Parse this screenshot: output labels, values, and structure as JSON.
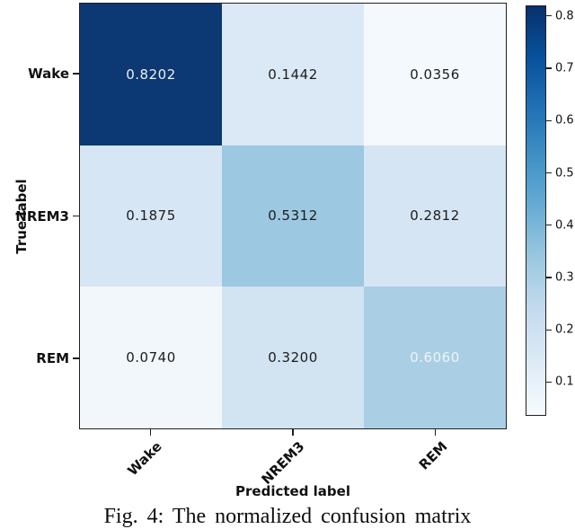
{
  "figure": {
    "caption": "Fig. 4: The normalized confusion matrix"
  },
  "chart_data": {
    "type": "heatmap",
    "title": "",
    "xlabel": "Predicted label",
    "ylabel": "True label",
    "x_categories": [
      "Wake",
      "NREM3",
      "REM"
    ],
    "y_categories": [
      "Wake",
      "NREM3",
      "REM"
    ],
    "values": [
      [
        0.8202,
        0.1442,
        0.0356
      ],
      [
        0.1875,
        0.5312,
        0.2812
      ],
      [
        0.074,
        0.32,
        0.606
      ]
    ],
    "cell_labels": [
      [
        "0.8202",
        "0.1442",
        "0.0356"
      ],
      [
        "0.1875",
        "0.5312",
        "0.2812"
      ],
      [
        "0.0740",
        "0.3200",
        "0.6060"
      ]
    ],
    "cell_colors": [
      [
        "#0c3873",
        "#dbe9f6",
        "#f4f9fe"
      ],
      [
        "#d7e6f4",
        "#9cc8e1",
        "#d5e5f4"
      ],
      [
        "#f2f7fc",
        "#d2e3f2",
        "#aacfe5"
      ]
    ],
    "cell_text_colors": [
      [
        "#eef0f3",
        "#1c1c1c",
        "#1c1c1c"
      ],
      [
        "#1c1c1c",
        "#1c1c1c",
        "#1c1c1c"
      ],
      [
        "#1c1c1c",
        "#1c1c1c",
        "#eef3f8"
      ]
    ],
    "colormap": "Blues",
    "grid": false,
    "colorbar": {
      "position": "right",
      "vmin": 0.0356,
      "vmax": 0.8202,
      "tick_values": [
        0.8,
        0.7,
        0.6,
        0.5,
        0.4,
        0.3,
        0.2,
        0.1
      ],
      "tick_labels": [
        "0.8",
        "0.7",
        "0.6",
        "0.5",
        "0.4",
        "0.3",
        "0.2",
        "0.1"
      ],
      "gradient_stops": [
        "#08306b",
        "#08519c",
        "#2171b5",
        "#4292c6",
        "#6baed6",
        "#9ecae1",
        "#c6dbef",
        "#deebf7",
        "#f7fbff"
      ]
    }
  },
  "colors": {
    "background": "#ffffff",
    "spine": "#1f1f1f",
    "text": "#111111"
  }
}
